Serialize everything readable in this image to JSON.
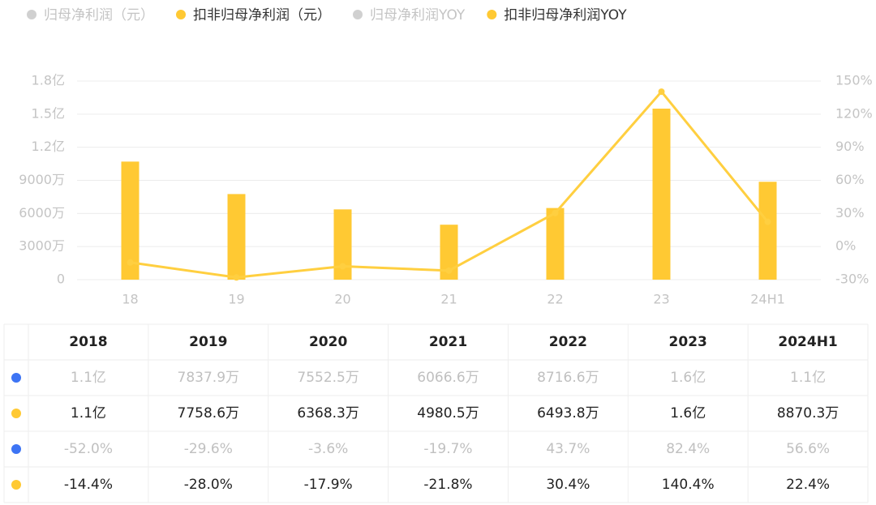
{
  "chart_data": {
    "type": "bar-line",
    "legend": [
      {
        "name": "归母净利润（元）",
        "color": "#d0d0d0",
        "hidden": true
      },
      {
        "name": "扣非归母净利润（元）",
        "color": "#ffc933",
        "hidden": false
      },
      {
        "name": "归母净利润YOY",
        "color": "#d0d0d0",
        "hidden": true
      },
      {
        "name": "扣非归母净利润YOY",
        "color": "#ffc933",
        "hidden": false
      }
    ],
    "categories": [
      "18",
      "19",
      "20",
      "21",
      "22",
      "23",
      "24H1"
    ],
    "series": [
      {
        "name": "扣非归母净利润（元）",
        "type": "bar",
        "color": "#ffc933",
        "values": [
          107000000,
          77586000,
          63683000,
          49805000,
          64938000,
          155000000,
          88703000
        ]
      },
      {
        "name": "扣非归母净利润YOY",
        "type": "line",
        "axis": "y2",
        "color": "#ffcf40",
        "values": [
          -14.4,
          -28.0,
          -17.9,
          -21.8,
          30.4,
          140.4,
          22.4
        ]
      }
    ],
    "ylim": [
      0,
      180000000
    ],
    "yticks": [
      0,
      {
        "value": 30000000,
        "label": "3000万"
      },
      {
        "value": 60000000,
        "label": "6000万"
      },
      {
        "value": 90000000,
        "label": "9000万"
      },
      {
        "value": 120000000,
        "label": "1.2亿"
      },
      {
        "value": 150000000,
        "label": "1.5亿"
      },
      {
        "value": 180000000,
        "label": "1.8亿"
      }
    ],
    "y2lim": [
      -30,
      150
    ],
    "y2ticks": [
      {
        "value": -30,
        "label": "-30%"
      },
      {
        "value": 0,
        "label": "0%"
      },
      {
        "value": 30,
        "label": "30%"
      },
      {
        "value": 60,
        "label": "60%"
      },
      {
        "value": 90,
        "label": "90%"
      },
      {
        "value": 120,
        "label": "120%"
      },
      {
        "value": 150,
        "label": "150%"
      }
    ],
    "grid": true
  },
  "table": {
    "header": [
      "2018",
      "2019",
      "2020",
      "2021",
      "2022",
      "2023",
      "2024H1"
    ],
    "rows": [
      {
        "color": "#3d74f4",
        "muted": true,
        "cells": [
          "1.1亿",
          "7837.9万",
          "7552.5万",
          "6066.6万",
          "8716.6万",
          "1.6亿",
          "1.1亿"
        ]
      },
      {
        "color": "#ffc933",
        "muted": false,
        "cells": [
          "1.1亿",
          "7758.6万",
          "6368.3万",
          "4980.5万",
          "6493.8万",
          "1.6亿",
          "8870.3万"
        ]
      },
      {
        "color": "#3d74f4",
        "muted": true,
        "cells": [
          "-52.0%",
          "-29.6%",
          "-3.6%",
          "-19.7%",
          "43.7%",
          "82.4%",
          "56.6%"
        ]
      },
      {
        "color": "#ffc933",
        "muted": false,
        "cells": [
          "-14.4%",
          "-28.0%",
          "-17.9%",
          "-21.8%",
          "30.4%",
          "140.4%",
          "22.4%"
        ]
      }
    ]
  }
}
